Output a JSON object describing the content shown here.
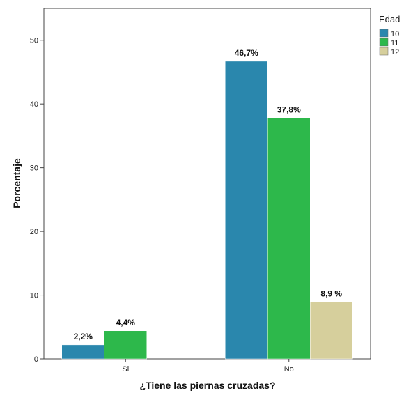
{
  "chart_data": {
    "type": "bar",
    "title": "",
    "xlabel": "¿Tiene las piernas cruzadas?",
    "ylabel": "Porcentaje",
    "categories": [
      "Si",
      "No"
    ],
    "ylim": [
      0,
      55
    ],
    "yticks": [
      0,
      10,
      20,
      30,
      40,
      50
    ],
    "grid": false,
    "legend": {
      "title": "Edad",
      "placement": "top-right"
    },
    "series": [
      {
        "name": "10",
        "color": "#2a87ad",
        "values": [
          2.2,
          46.7
        ],
        "labels": [
          "2,2%",
          "46,7%"
        ]
      },
      {
        "name": "11",
        "color": "#2db84b",
        "values": [
          4.4,
          37.8
        ],
        "labels": [
          "4,4%",
          "37,8%"
        ]
      },
      {
        "name": "12",
        "color": "#d6cf9c",
        "values": [
          null,
          8.9
        ],
        "labels": [
          null,
          "8,9 %"
        ]
      }
    ]
  }
}
